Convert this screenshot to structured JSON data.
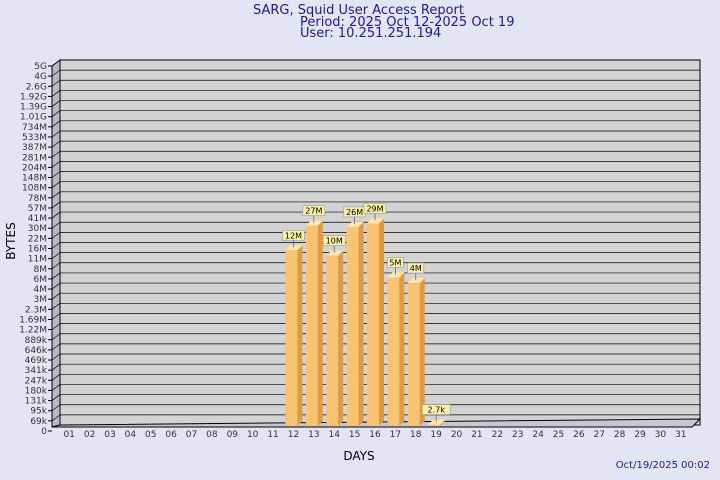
{
  "report": {
    "title": "SARG, Squid User Access Report",
    "period": "Period: 2025 Oct 12-2025 Oct 19",
    "user": "User: 10.251.251.194",
    "timestamp": "Oct/19/2025 00:02"
  },
  "chart_data": {
    "type": "bar",
    "xlabel": "DAYS",
    "ylabel": "BYTES",
    "categories": [
      "01",
      "02",
      "03",
      "04",
      "05",
      "06",
      "07",
      "08",
      "09",
      "10",
      "11",
      "12",
      "13",
      "14",
      "15",
      "16",
      "17",
      "18",
      "19",
      "20",
      "21",
      "22",
      "23",
      "24",
      "25",
      "26",
      "27",
      "28",
      "29",
      "30",
      "31"
    ],
    "y_ticks": [
      "0",
      "69k",
      "95k",
      "131k",
      "180k",
      "247k",
      "341k",
      "469k",
      "646k",
      "889k",
      "1.22M",
      "1.69M",
      "2.3M",
      "3M",
      "4M",
      "6M",
      "8M",
      "11M",
      "16M",
      "22M",
      "30M",
      "41M",
      "57M",
      "78M",
      "108M",
      "148M",
      "204M",
      "281M",
      "387M",
      "533M",
      "734M",
      "1.01G",
      "1.39G",
      "1.92G",
      "2.6G",
      "4G",
      "5G"
    ],
    "scale": "log",
    "grid": true,
    "values": [
      null,
      null,
      null,
      null,
      null,
      null,
      null,
      null,
      null,
      null,
      null,
      12000000,
      27000000,
      10000000,
      26000000,
      29000000,
      5000000,
      4000000,
      2700,
      null,
      null,
      null,
      null,
      null,
      null,
      null,
      null,
      null,
      null,
      null,
      null
    ],
    "labels": [
      null,
      null,
      null,
      null,
      null,
      null,
      null,
      null,
      null,
      null,
      null,
      "12M",
      "27M",
      "10M",
      "26M",
      "29M",
      "5M",
      "4M",
      "2.7k",
      null,
      null,
      null,
      null,
      null,
      null,
      null,
      null,
      null,
      null,
      null,
      null
    ]
  },
  "colors": {
    "background": "#e4e4f4",
    "plot": "#d3d3d3",
    "bar_front": "#f8c472",
    "bar_side": "#e09a40",
    "bar_top": "#fde6b4",
    "label_bg": "#f8f0a8",
    "title": "#1c1c8c"
  }
}
